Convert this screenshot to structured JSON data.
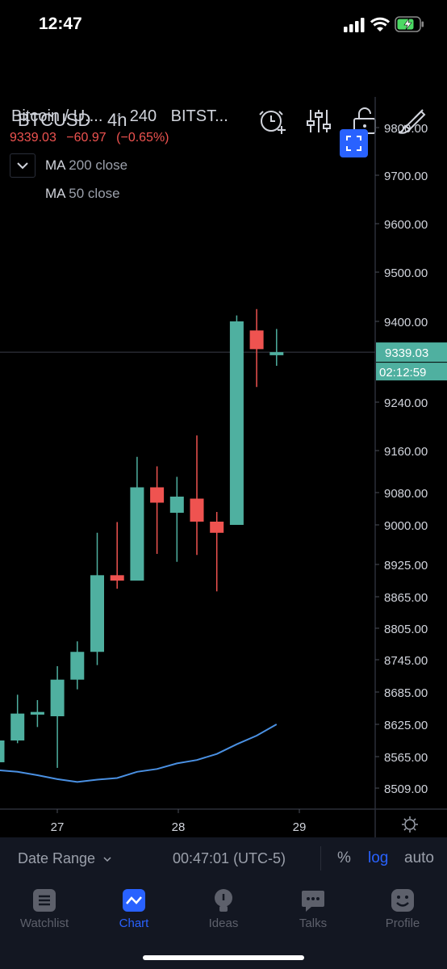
{
  "status_bar": {
    "time": "12:47",
    "icons": [
      "cellular-signal-icon",
      "wifi-icon",
      "battery-charging-icon"
    ]
  },
  "toolbar": {
    "symbol": "BTCUSD",
    "interval": "4h",
    "icons": [
      "alarm-add-icon",
      "indicators-icon",
      "unlock-icon",
      "drawing-brush-icon"
    ]
  },
  "legend": {
    "title": "Bitcoin / U....",
    "interval": "240",
    "exchange": "BITST...",
    "last_price": "9339.03",
    "change": "−60.97",
    "change_pct": "(−0.65%)",
    "indicators": [
      {
        "name": "MA",
        "params": "200 close"
      },
      {
        "name": "MA",
        "params": "50 close"
      }
    ]
  },
  "chart_data": {
    "type": "candlestick",
    "price_axis_labels": [
      "9800.00",
      "9700.00",
      "9600.00",
      "9500.00",
      "9400.00",
      "9240.00",
      "9160.00",
      "9080.00",
      "9000.00",
      "8925.00",
      "8865.00",
      "8805.00",
      "8745.00",
      "8685.00",
      "8625.00",
      "8565.00",
      "8509.00"
    ],
    "date_axis_labels": [
      "27",
      "28",
      "29"
    ],
    "scale": "log",
    "current_price_label": "9339.03",
    "countdown_label": "02:12:59",
    "candles": [
      {
        "open": 8555,
        "high": 8610,
        "low": 8530,
        "close": 8595
      },
      {
        "open": 8595,
        "high": 8680,
        "low": 8590,
        "close": 8645
      },
      {
        "open": 8643,
        "high": 8670,
        "low": 8620,
        "close": 8648
      },
      {
        "open": 8640,
        "high": 8733,
        "low": 8545,
        "close": 8708
      },
      {
        "open": 8708,
        "high": 8780,
        "low": 8690,
        "close": 8760
      },
      {
        "open": 8760,
        "high": 8985,
        "low": 8735,
        "close": 8905
      },
      {
        "open": 8905,
        "high": 9007,
        "low": 8880,
        "close": 8895
      },
      {
        "open": 8895,
        "high": 9148,
        "low": 8895,
        "close": 9090
      },
      {
        "open": 9090,
        "high": 9130,
        "low": 8945,
        "close": 9055
      },
      {
        "open": 9030,
        "high": 9110,
        "low": 8930,
        "close": 9070
      },
      {
        "open": 9065,
        "high": 9185,
        "low": 8943,
        "close": 9008
      },
      {
        "open": 9008,
        "high": 9032,
        "low": 8875,
        "close": 8985
      },
      {
        "open": 9000,
        "high": 9412,
        "low": 9000,
        "close": 9400
      },
      {
        "open": 9382,
        "high": 9425,
        "low": 9270,
        "close": 9345
      },
      {
        "open": 9333,
        "high": 9385,
        "low": 9312,
        "close": 9339
      }
    ],
    "ma50": [
      8541,
      8538,
      8532,
      8525,
      8520,
      8524,
      8527,
      8538,
      8543,
      8553,
      8559,
      8570,
      8588,
      8604,
      8625
    ]
  },
  "bottom_bar": {
    "date_range": "Date Range",
    "clock": "00:47:01 (UTC-5)",
    "percent": "%",
    "log": "log",
    "auto": "auto"
  },
  "tabs": [
    {
      "label": "Watchlist",
      "icon": "watchlist-icon",
      "active": false
    },
    {
      "label": "Chart",
      "icon": "chart-icon",
      "active": true
    },
    {
      "label": "Ideas",
      "icon": "ideas-icon",
      "active": false
    },
    {
      "label": "Talks",
      "icon": "talks-icon",
      "active": false
    },
    {
      "label": "Profile",
      "icon": "profile-icon",
      "active": false
    }
  ],
  "colors": {
    "up": "#26a69a",
    "up_fill": "#4fb0a0",
    "down": "#ef5350",
    "accent": "#2962ff",
    "ma50": "#4a90e2"
  }
}
